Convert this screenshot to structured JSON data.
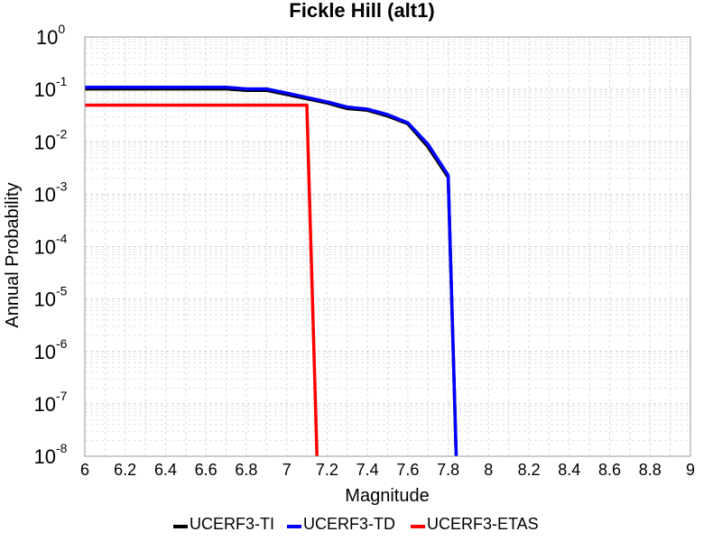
{
  "chart_data": {
    "type": "line",
    "title": "Fickle Hill (alt1)",
    "xlabel": "Magnitude",
    "ylabel": "Annual Probability",
    "xlim": [
      6,
      9
    ],
    "ylim": [
      1e-08,
      1
    ],
    "yscale": "log",
    "grid": true,
    "legend_position": "bottom",
    "xticks": [
      "6",
      "6.2",
      "6.4",
      "6.6",
      "6.8",
      "7",
      "7.2",
      "7.4",
      "7.6",
      "7.8",
      "8",
      "8.2",
      "8.4",
      "8.6",
      "8.8",
      "9"
    ],
    "yticks": [
      {
        "base": "10",
        "exp": "0"
      },
      {
        "base": "10",
        "exp": "-1"
      },
      {
        "base": "10",
        "exp": "-2"
      },
      {
        "base": "10",
        "exp": "-3"
      },
      {
        "base": "10",
        "exp": "-4"
      },
      {
        "base": "10",
        "exp": "-5"
      },
      {
        "base": "10",
        "exp": "-6"
      },
      {
        "base": "10",
        "exp": "-7"
      },
      {
        "base": "10",
        "exp": "-8"
      }
    ],
    "series": [
      {
        "name": "UCERF3-TI",
        "color": "#000000",
        "points": [
          [
            6.0,
            0.102
          ],
          [
            6.7,
            0.102
          ],
          [
            6.8,
            0.096
          ],
          [
            6.9,
            0.096
          ],
          [
            7.0,
            0.08
          ],
          [
            7.1,
            0.066
          ],
          [
            7.2,
            0.055
          ],
          [
            7.3,
            0.043
          ],
          [
            7.4,
            0.04
          ],
          [
            7.5,
            0.031
          ],
          [
            7.6,
            0.022
          ],
          [
            7.7,
            0.008
          ],
          [
            7.8,
            0.0021
          ],
          [
            7.84,
            1e-08
          ]
        ]
      },
      {
        "name": "UCERF3-TD",
        "color": "#0000ff",
        "points": [
          [
            6.0,
            0.11
          ],
          [
            6.7,
            0.11
          ],
          [
            6.8,
            0.102
          ],
          [
            6.9,
            0.102
          ],
          [
            7.0,
            0.085
          ],
          [
            7.1,
            0.07
          ],
          [
            7.2,
            0.058
          ],
          [
            7.3,
            0.046
          ],
          [
            7.4,
            0.042
          ],
          [
            7.5,
            0.033
          ],
          [
            7.6,
            0.023
          ],
          [
            7.7,
            0.009
          ],
          [
            7.8,
            0.0023
          ],
          [
            7.84,
            1e-08
          ]
        ]
      },
      {
        "name": "UCERF3-ETAS",
        "color": "#ff0000",
        "points": [
          [
            6.0,
            0.05
          ],
          [
            7.1,
            0.05
          ],
          [
            7.15,
            1e-08
          ]
        ]
      }
    ]
  }
}
